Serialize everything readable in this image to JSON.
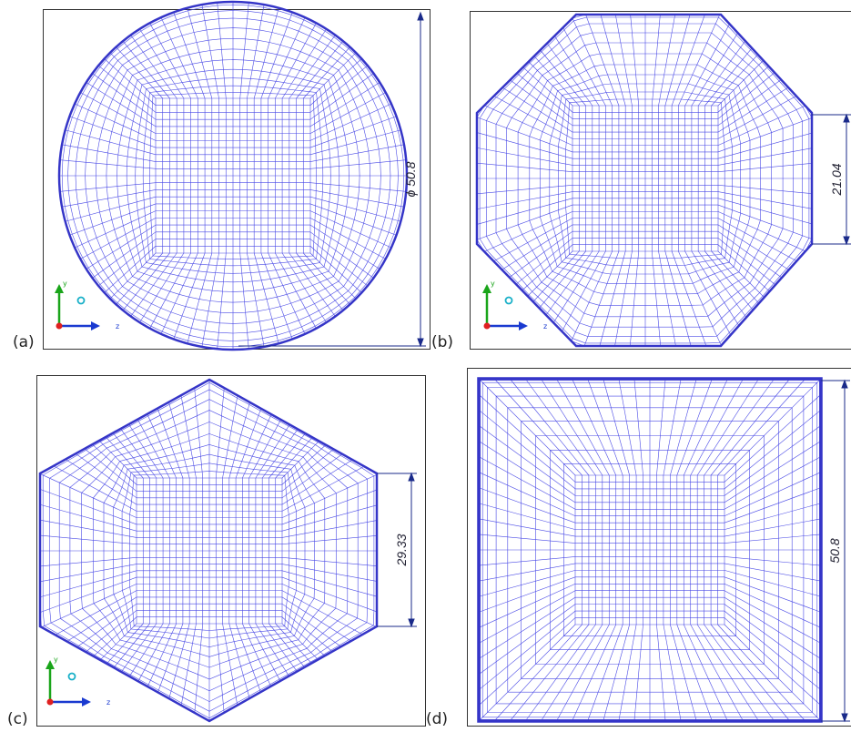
{
  "panels": [
    {
      "id": "a",
      "label": "(a)",
      "shape": "circle",
      "dimension": "ϕ 50.8"
    },
    {
      "id": "b",
      "label": "(b)",
      "shape": "octagon",
      "dimension": "21.04"
    },
    {
      "id": "c",
      "label": "(c)",
      "shape": "hexagon",
      "dimension": "29.33"
    },
    {
      "id": "d",
      "label": "(d)",
      "shape": "square",
      "dimension": "50.8"
    }
  ],
  "axes": {
    "y_label": "y",
    "z_label": "z"
  },
  "colors": {
    "mesh": "#4a4ae6",
    "outline": "#3535c8",
    "dim_line": "#1a2a8a",
    "axis_y": "#1aa51a",
    "axis_z": "#1a3ad0",
    "origin": "#e02020",
    "center_marker": "#19b0c8"
  }
}
